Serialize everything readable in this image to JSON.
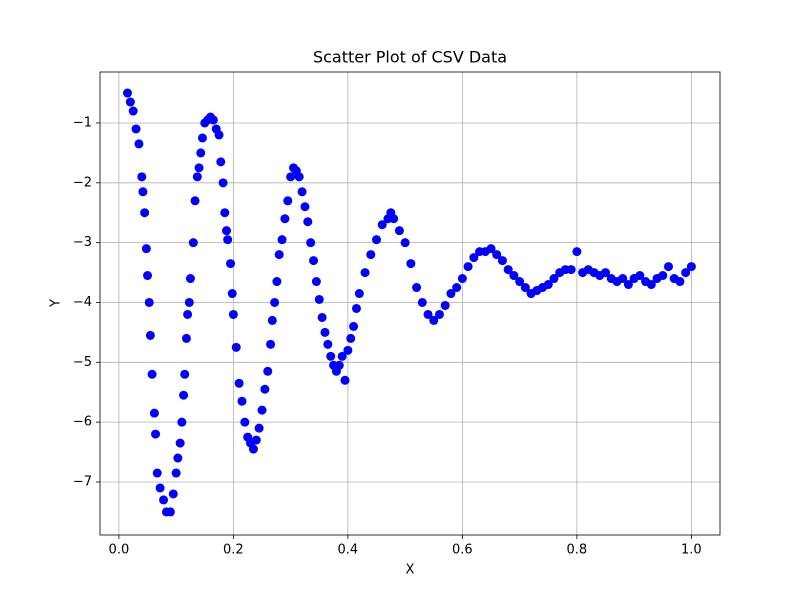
{
  "chart_data": {
    "type": "scatter",
    "title": "Scatter Plot of CSV Data",
    "x_label": "X",
    "y_label": "Y",
    "color": "#0000ff",
    "grid": true,
    "xlim": [
      -0.033,
      1.05
    ],
    "ylim": [
      -7.886,
      -0.148
    ],
    "xticks": [
      {
        "value": 0,
        "label": "0.0"
      },
      0.2,
      0.4,
      0.6,
      0.8,
      {
        "value": 1,
        "label": "1.0"
      }
    ],
    "yticks": [
      {
        "value": -7,
        "label": "−7"
      },
      {
        "value": -6,
        "label": "−6"
      },
      {
        "value": -5,
        "label": "−5"
      },
      {
        "value": -4,
        "label": "−4"
      },
      {
        "value": -3,
        "label": "−3"
      },
      {
        "value": -2,
        "label": "−2"
      },
      {
        "value": -1,
        "label": "−1"
      }
    ],
    "x": [
      0.015,
      0.02,
      0.025,
      0.03,
      0.035,
      0.04,
      0.042,
      0.045,
      0.048,
      0.05,
      0.053,
      0.055,
      0.058,
      0.062,
      0.064,
      0.067,
      0.072,
      0.078,
      0.083,
      0.09,
      0.095,
      0.1,
      0.103,
      0.107,
      0.11,
      0.113,
      0.115,
      0.118,
      0.12,
      0.123,
      0.125,
      0.13,
      0.133,
      0.137,
      0.14,
      0.143,
      0.146,
      0.15,
      0.155,
      0.16,
      0.165,
      0.17,
      0.175,
      0.178,
      0.182,
      0.185,
      0.188,
      0.19,
      0.195,
      0.198,
      0.2,
      0.205,
      0.21,
      0.215,
      0.22,
      0.225,
      0.23,
      0.235,
      0.24,
      0.245,
      0.25,
      0.255,
      0.26,
      0.265,
      0.268,
      0.272,
      0.276,
      0.28,
      0.285,
      0.29,
      0.295,
      0.3,
      0.305,
      0.31,
      0.315,
      0.32,
      0.325,
      0.33,
      0.335,
      0.34,
      0.345,
      0.35,
      0.355,
      0.36,
      0.365,
      0.37,
      0.375,
      0.38,
      0.385,
      0.39,
      0.395,
      0.4,
      0.405,
      0.41,
      0.415,
      0.42,
      0.43,
      0.44,
      0.45,
      0.46,
      0.47,
      0.475,
      0.48,
      0.49,
      0.5,
      0.51,
      0.52,
      0.53,
      0.54,
      0.55,
      0.56,
      0.57,
      0.58,
      0.59,
      0.6,
      0.61,
      0.62,
      0.63,
      0.64,
      0.65,
      0.66,
      0.67,
      0.68,
      0.69,
      0.7,
      0.71,
      0.72,
      0.73,
      0.74,
      0.75,
      0.76,
      0.77,
      0.78,
      0.79,
      0.8,
      0.81,
      0.82,
      0.83,
      0.84,
      0.85,
      0.86,
      0.87,
      0.88,
      0.89,
      0.9,
      0.91,
      0.92,
      0.93,
      0.94,
      0.95,
      0.96,
      0.97,
      0.98,
      0.99,
      1.0
    ],
    "values": [
      -0.5,
      -0.65,
      -0.8,
      -1.1,
      -1.35,
      -1.9,
      -2.15,
      -2.5,
      -3.1,
      -3.55,
      -4.0,
      -4.55,
      -5.2,
      -5.85,
      -6.2,
      -6.85,
      -7.1,
      -7.3,
      -7.5,
      -7.5,
      -7.2,
      -6.85,
      -6.6,
      -6.35,
      -6.0,
      -5.55,
      -5.2,
      -4.6,
      -4.2,
      -4.0,
      -3.6,
      -3.0,
      -2.3,
      -1.9,
      -1.75,
      -1.5,
      -1.25,
      -1.0,
      -0.95,
      -0.9,
      -0.95,
      -1.1,
      -1.2,
      -1.65,
      -2.0,
      -2.5,
      -2.8,
      -2.95,
      -3.35,
      -3.85,
      -4.2,
      -4.75,
      -5.35,
      -5.65,
      -6.0,
      -6.25,
      -6.35,
      -6.45,
      -6.3,
      -6.1,
      -5.8,
      -5.45,
      -5.15,
      -4.7,
      -4.3,
      -4.0,
      -3.65,
      -3.2,
      -2.95,
      -2.6,
      -2.3,
      -1.9,
      -1.75,
      -1.8,
      -1.9,
      -2.15,
      -2.4,
      -2.65,
      -3.0,
      -3.3,
      -3.65,
      -3.95,
      -4.25,
      -4.5,
      -4.7,
      -4.9,
      -5.05,
      -5.15,
      -5.05,
      -4.9,
      -5.3,
      -4.8,
      -4.6,
      -4.4,
      -4.1,
      -3.85,
      -3.5,
      -3.2,
      -2.95,
      -2.7,
      -2.6,
      -2.5,
      -2.6,
      -2.8,
      -3.0,
      -3.35,
      -3.75,
      -4.0,
      -4.2,
      -4.3,
      -4.2,
      -4.05,
      -3.85,
      -3.75,
      -3.6,
      -3.4,
      -3.25,
      -3.15,
      -3.15,
      -3.1,
      -3.2,
      -3.3,
      -3.45,
      -3.55,
      -3.65,
      -3.75,
      -3.85,
      -3.8,
      -3.75,
      -3.7,
      -3.6,
      -3.5,
      -3.45,
      -3.45,
      -3.15,
      -3.5,
      -3.45,
      -3.5,
      -3.55,
      -3.5,
      -3.6,
      -3.65,
      -3.6,
      -3.7,
      -3.6,
      -3.55,
      -3.65,
      -3.7,
      -3.6,
      -3.55,
      -3.4,
      -3.6,
      -3.65,
      -3.5,
      -3.4
    ]
  }
}
